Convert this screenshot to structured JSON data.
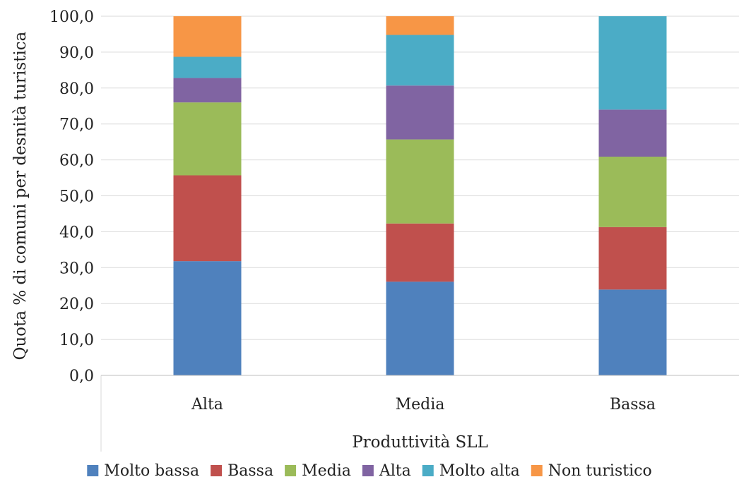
{
  "chart_data": {
    "type": "bar",
    "stacked": true,
    "categories": [
      "Alta",
      "Media",
      "Bassa"
    ],
    "series": [
      {
        "name": "Molto bassa",
        "color": "#4f81bd",
        "values": [
          31.8,
          26.1,
          23.9
        ]
      },
      {
        "name": "Bassa",
        "color": "#c0504d",
        "values": [
          23.9,
          16.2,
          17.4
        ]
      },
      {
        "name": "Media",
        "color": "#9bbb59",
        "values": [
          20.3,
          23.4,
          19.6
        ]
      },
      {
        "name": "Alta",
        "color": "#8064a2",
        "values": [
          6.8,
          15.0,
          13.1
        ]
      },
      {
        "name": "Molto alta",
        "color": "#4bacc6",
        "values": [
          5.9,
          14.1,
          26.0
        ]
      },
      {
        "name": "Non turistico",
        "color": "#f79646",
        "values": [
          11.3,
          5.2,
          0.0
        ]
      }
    ],
    "xlabel": "Produttività SLL",
    "ylabel": "Quota % di comuni per desnità turistica",
    "ylim": [
      0,
      100
    ],
    "yticks": [
      "0,0",
      "10,0",
      "20,0",
      "30,0",
      "40,0",
      "50,0",
      "60,0",
      "70,0",
      "80,0",
      "90,0",
      "100,0"
    ],
    "grid": true,
    "legend_position": "bottom"
  }
}
